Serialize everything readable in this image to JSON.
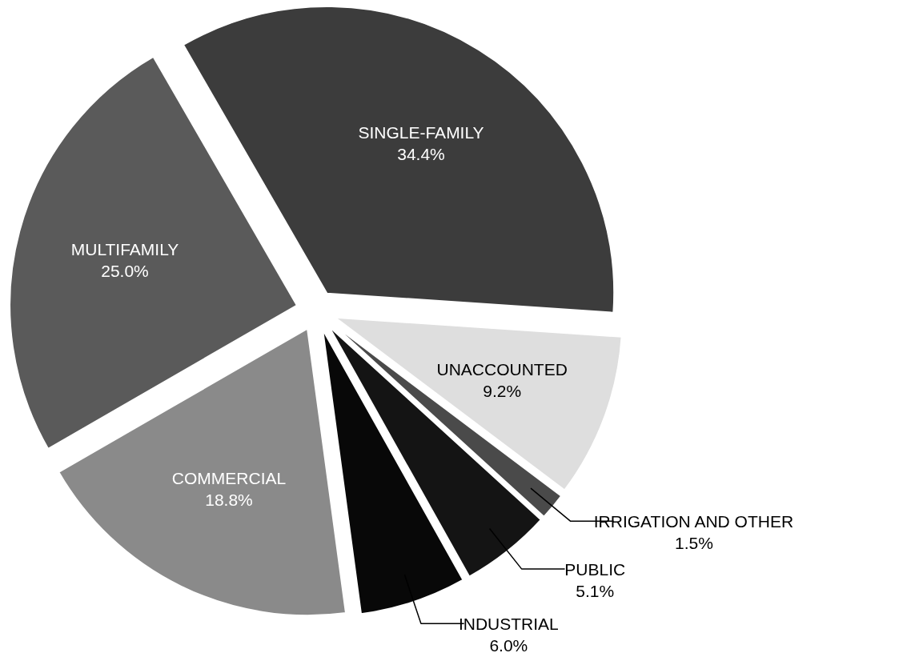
{
  "chart_data": {
    "type": "pie",
    "categories": [
      "SINGLE-FAMILY",
      "UNACCOUNTED",
      "IRRIGATION AND OTHER",
      "PUBLIC",
      "INDUSTRIAL",
      "COMMERCIAL",
      "MULTIFAMILY"
    ],
    "values": [
      34.4,
      9.2,
      1.5,
      5.1,
      6.0,
      18.8,
      25.0
    ],
    "value_labels": [
      "34.4%",
      "9.2%",
      "1.5%",
      "5.1%",
      "6.0%",
      "18.8%",
      "25.0%"
    ],
    "colors": [
      "#3c3c3c",
      "#dedede",
      "#4a4a4a",
      "#141414",
      "#080808",
      "#8a8a8a",
      "#5a5a5a"
    ]
  }
}
